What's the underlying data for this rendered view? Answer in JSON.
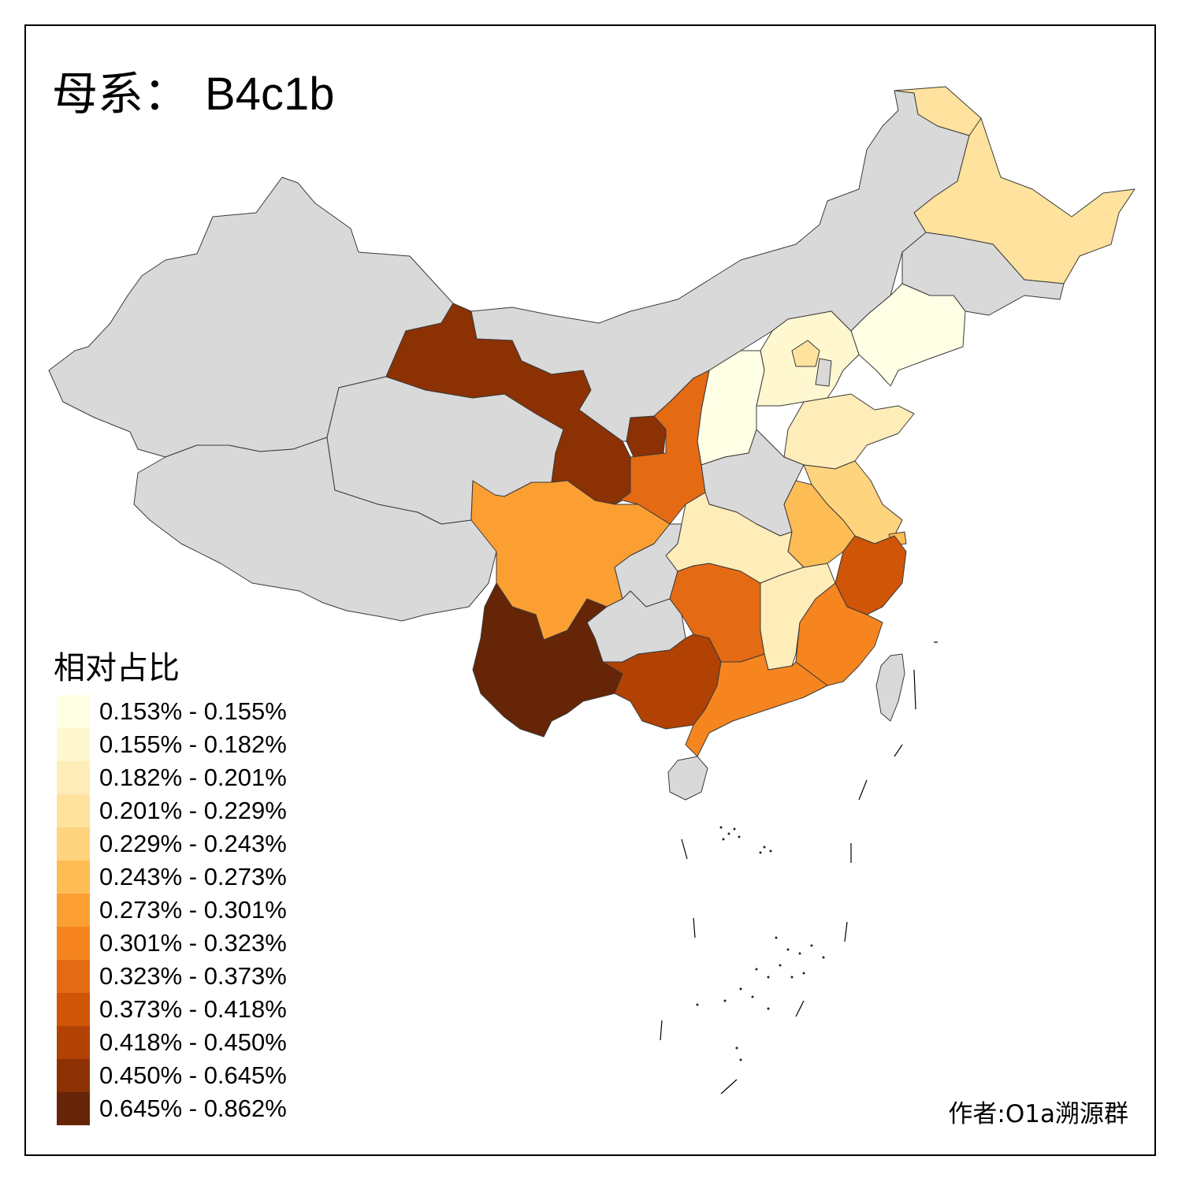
{
  "title": {
    "prefix": "母系",
    "separator": "：",
    "haplogroup": "B4c1b"
  },
  "legend": {
    "title": "相对占比",
    "items": [
      {
        "label": "0.153% - 0.155%",
        "color": "#FFFFE6"
      },
      {
        "label": "0.155% - 0.182%",
        "color": "#FFF7CF"
      },
      {
        "label": "0.182% - 0.201%",
        "color": "#FEEDB8"
      },
      {
        "label": "0.201% - 0.229%",
        "color": "#FEE29D"
      },
      {
        "label": "0.229% - 0.243%",
        "color": "#FED47E"
      },
      {
        "label": "0.243% - 0.273%",
        "color": "#FEBC54"
      },
      {
        "label": "0.273% - 0.301%",
        "color": "#FB9F33"
      },
      {
        "label": "0.301% - 0.323%",
        "color": "#F68520"
      },
      {
        "label": "0.323% - 0.373%",
        "color": "#E56A14"
      },
      {
        "label": "0.373% - 0.418%",
        "color": "#D05507"
      },
      {
        "label": "0.418% - 0.450%",
        "color": "#B14203"
      },
      {
        "label": "0.450% - 0.645%",
        "color": "#8C3104"
      },
      {
        "label": "0.645% - 0.862%",
        "color": "#662506"
      }
    ]
  },
  "no_data_color": "#D9D9D9",
  "regions": [
    {
      "name": "heilongjiang",
      "class": 3
    },
    {
      "name": "jilin",
      "class": null
    },
    {
      "name": "liaoning",
      "class": 0
    },
    {
      "name": "inner-mongolia",
      "class": null
    },
    {
      "name": "hebei",
      "class": 1
    },
    {
      "name": "beijing",
      "class": 3
    },
    {
      "name": "tianjin",
      "class": null
    },
    {
      "name": "shanxi",
      "class": 0
    },
    {
      "name": "shandong",
      "class": 2
    },
    {
      "name": "henan",
      "class": null
    },
    {
      "name": "shaanxi",
      "class": 8
    },
    {
      "name": "ningxia",
      "class": 11
    },
    {
      "name": "gansu",
      "class": 11
    },
    {
      "name": "qinghai",
      "class": null
    },
    {
      "name": "xinjiang",
      "class": null
    },
    {
      "name": "tibet",
      "class": null
    },
    {
      "name": "sichuan",
      "class": 6
    },
    {
      "name": "chongqing",
      "class": null
    },
    {
      "name": "hubei",
      "class": 2
    },
    {
      "name": "anhui",
      "class": 5
    },
    {
      "name": "jiangsu",
      "class": 4
    },
    {
      "name": "shanghai",
      "class": 5
    },
    {
      "name": "zhejiang",
      "class": 9
    },
    {
      "name": "jiangxi",
      "class": 2
    },
    {
      "name": "hunan",
      "class": 8
    },
    {
      "name": "guizhou",
      "class": null
    },
    {
      "name": "yunnan",
      "class": 12
    },
    {
      "name": "guangxi",
      "class": 10
    },
    {
      "name": "guangdong",
      "class": 7
    },
    {
      "name": "fujian",
      "class": 7
    },
    {
      "name": "hainan",
      "class": null
    },
    {
      "name": "taiwan",
      "class": null
    }
  ],
  "author": "作者:O1a溯源群"
}
